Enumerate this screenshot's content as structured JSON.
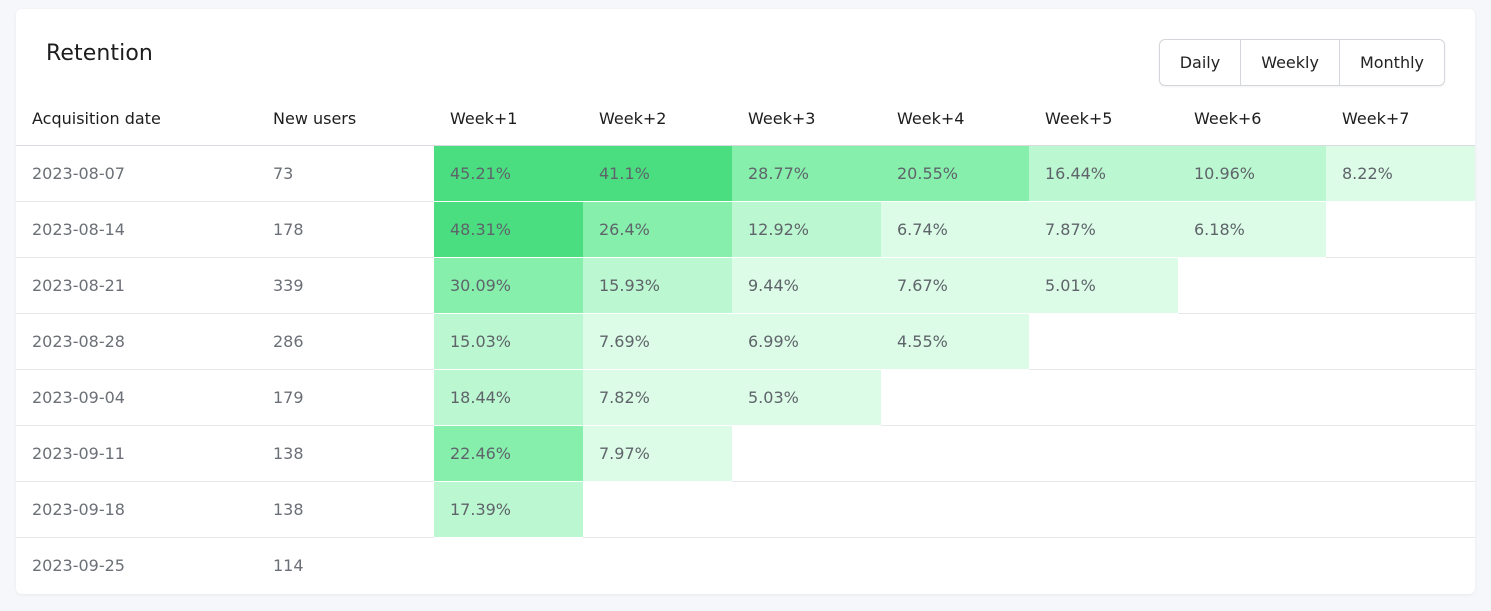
{
  "title": "Retention",
  "periods": [
    {
      "label": "Daily"
    },
    {
      "label": "Weekly"
    },
    {
      "label": "Monthly"
    }
  ],
  "columns": {
    "date": "Acquisition date",
    "users": "New users",
    "weeks": [
      "Week+1",
      "Week+2",
      "Week+3",
      "Week+4",
      "Week+5",
      "Week+6",
      "Week+7"
    ]
  },
  "colors": {
    "level_4": "#4ade80",
    "level_3": "#86efac",
    "level_2": "#bbf7d0",
    "level_1": "#dcfce7"
  },
  "rows": [
    {
      "date": "2023-08-07",
      "users": "73",
      "values": [
        "45.21%",
        "41.1%",
        "28.77%",
        "20.55%",
        "16.44%",
        "10.96%",
        "8.22%"
      ]
    },
    {
      "date": "2023-08-14",
      "users": "178",
      "values": [
        "48.31%",
        "26.4%",
        "12.92%",
        "6.74%",
        "7.87%",
        "6.18%"
      ]
    },
    {
      "date": "2023-08-21",
      "users": "339",
      "values": [
        "30.09%",
        "15.93%",
        "9.44%",
        "7.67%",
        "5.01%"
      ]
    },
    {
      "date": "2023-08-28",
      "users": "286",
      "values": [
        "15.03%",
        "7.69%",
        "6.99%",
        "4.55%"
      ]
    },
    {
      "date": "2023-09-04",
      "users": "179",
      "values": [
        "18.44%",
        "7.82%",
        "5.03%"
      ]
    },
    {
      "date": "2023-09-11",
      "users": "138",
      "values": [
        "22.46%",
        "7.97%"
      ]
    },
    {
      "date": "2023-09-18",
      "users": "138",
      "values": [
        "17.39%"
      ]
    },
    {
      "date": "2023-09-25",
      "users": "114",
      "values": []
    }
  ]
}
